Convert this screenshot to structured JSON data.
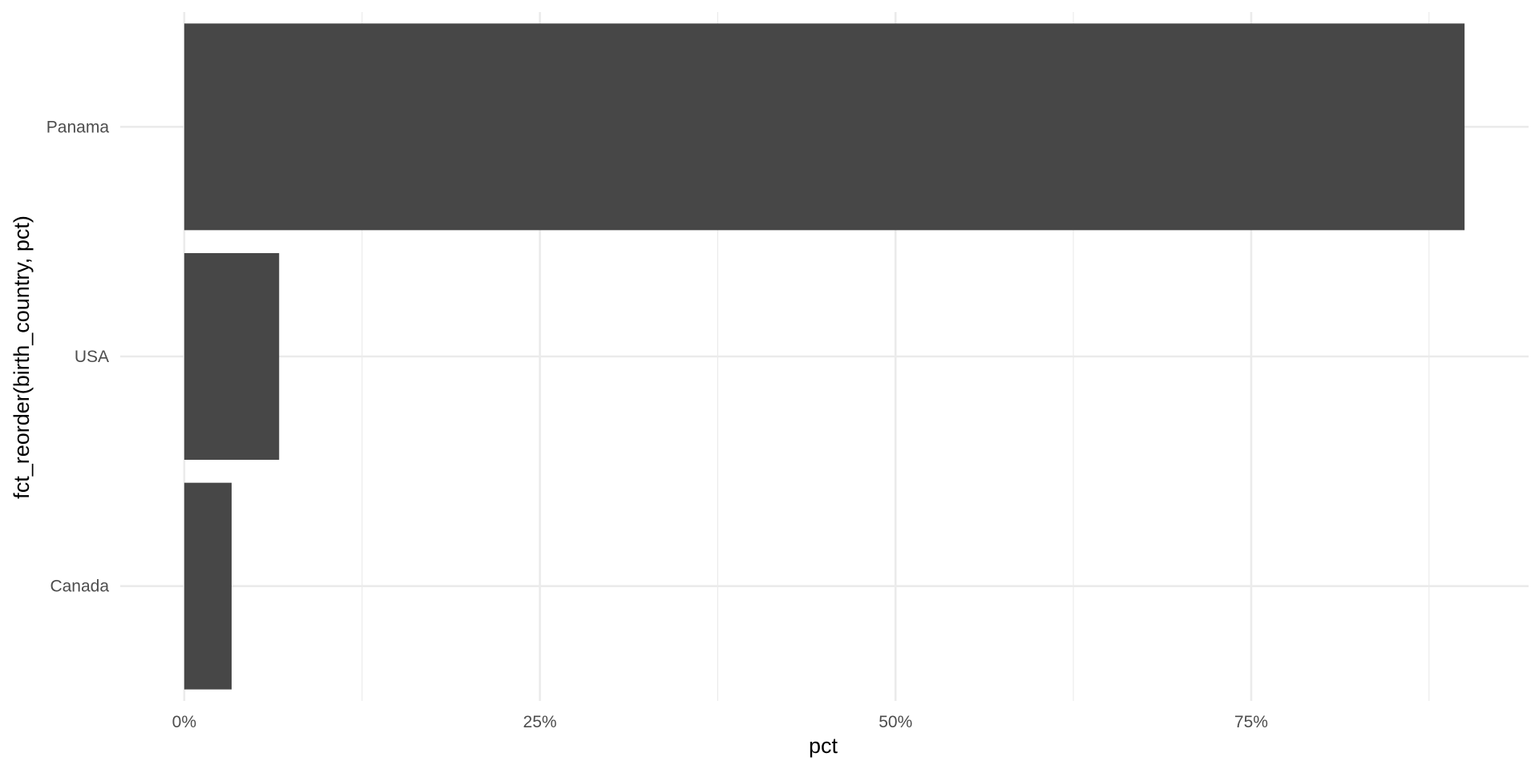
{
  "chart_data": {
    "type": "bar",
    "orientation": "horizontal",
    "categories": [
      "Panama",
      "USA",
      "Canada"
    ],
    "values": [
      90.0,
      6.67,
      3.33
    ],
    "title": "",
    "xlabel": "pct",
    "ylabel": "fct_reorder(birth_country, pct)",
    "xlim": [
      -4.5,
      94.5
    ],
    "x_ticks": [
      0,
      25,
      50,
      75
    ],
    "x_tick_labels": [
      "0%",
      "25%",
      "50%",
      "75%"
    ],
    "grid": true,
    "bar_color": "#474747",
    "grid_color": "#ebebeb"
  }
}
